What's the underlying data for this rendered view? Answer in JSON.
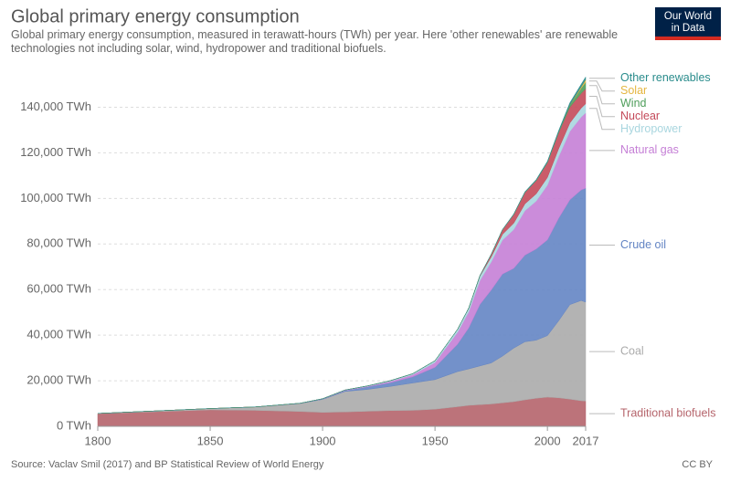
{
  "chart_data": {
    "type": "stacked-area",
    "title": "Global primary energy consumption",
    "subtitle": "Global primary energy consumption, measured in terawatt-hours (TWh) per year. Here 'other renewables' are renewable technologies not including solar, wind, hydropower and traditional biofuels.",
    "source": "Source: Vaclav Smil (2017) and BP Statistical Review of World Energy",
    "license": "CC BY",
    "logo": [
      "Our World",
      "in Data"
    ],
    "x": [
      1800,
      1850,
      1870,
      1890,
      1900,
      1910,
      1920,
      1930,
      1940,
      1950,
      1960,
      1965,
      1970,
      1975,
      1980,
      1985,
      1990,
      1995,
      2000,
      2005,
      2010,
      2015,
      2017
    ],
    "xlim": [
      1800,
      2017
    ],
    "xticks": [
      1800,
      1850,
      1900,
      1950,
      2000,
      2017
    ],
    "ylim": [
      0,
      155000
    ],
    "yticks": [
      {
        "value": 0,
        "label": "0 TWh"
      },
      {
        "value": 20000,
        "label": "20,000 TWh"
      },
      {
        "value": 40000,
        "label": "40,000 TWh"
      },
      {
        "value": 60000,
        "label": "60,000 TWh"
      },
      {
        "value": 80000,
        "label": "80,000 TWh"
      },
      {
        "value": 100000,
        "label": "100,000 TWh"
      },
      {
        "value": 120000,
        "label": "120,000 TWh"
      },
      {
        "value": 140000,
        "label": "140,000 TWh"
      }
    ],
    "grid": true,
    "series": [
      {
        "name": "Traditional biofuels",
        "color": "#b5646b",
        "values": [
          5556,
          7222,
          7000,
          6500,
          6111,
          6300,
          6600,
          6900,
          7000,
          7500,
          8600,
          9200,
          9500,
          9800,
          10300,
          10800,
          11600,
          12300,
          12800,
          12500,
          11900,
          11200,
          11100
        ]
      },
      {
        "name": "Coal",
        "color": "#ababab",
        "values": [
          97,
          570,
          1500,
          3500,
          5700,
          9000,
          9600,
          10600,
          12000,
          13000,
          15400,
          16000,
          17000,
          18000,
          20500,
          23500,
          25500,
          25500,
          27000,
          33800,
          41500,
          44000,
          43400
        ]
      },
      {
        "name": "Crude oil",
        "color": "#6485c4",
        "values": [
          0,
          0,
          6,
          88,
          181,
          380,
          1100,
          1600,
          2700,
          5400,
          12000,
          18000,
          27000,
          32000,
          36000,
          35000,
          38000,
          40000,
          42000,
          45000,
          46000,
          48500,
          50000
        ]
      },
      {
        "name": "Natural gas",
        "color": "#c57fd6",
        "values": [
          0,
          0,
          0,
          33,
          64,
          150,
          230,
          600,
          900,
          2100,
          5200,
          7000,
          10500,
          12300,
          14900,
          17000,
          19500,
          21000,
          24000,
          27000,
          30000,
          32000,
          33000
        ]
      },
      {
        "name": "Hydropower",
        "color": "#a9d6df",
        "values": [
          0,
          0,
          0,
          0,
          50,
          100,
          200,
          300,
          450,
          800,
          1300,
          1600,
          1900,
          2200,
          2500,
          2800,
          3000,
          3200,
          3400,
          3500,
          3700,
          3900,
          4000
        ]
      },
      {
        "name": "Nuclear",
        "color": "#c44a5a",
        "values": [
          0,
          0,
          0,
          0,
          0,
          0,
          0,
          0,
          0,
          0,
          5,
          60,
          230,
          1100,
          2000,
          3800,
          5000,
          5800,
          6500,
          7000,
          7000,
          6500,
          6600
        ]
      },
      {
        "name": "Wind",
        "color": "#4f9e5b",
        "values": [
          0,
          0,
          0,
          0,
          0,
          0,
          0,
          0,
          0,
          0,
          0,
          0,
          0,
          0,
          0,
          5,
          10,
          20,
          80,
          280,
          900,
          2200,
          2800
        ]
      },
      {
        "name": "Solar",
        "color": "#e5b640",
        "values": [
          0,
          0,
          0,
          0,
          0,
          0,
          0,
          0,
          0,
          0,
          0,
          0,
          0,
          0,
          0,
          0,
          1,
          2,
          3,
          10,
          90,
          660,
          1200
        ]
      },
      {
        "name": "Other renewables",
        "color": "#2a8c8c",
        "values": [
          0,
          0,
          0,
          0,
          0,
          0,
          0,
          0,
          0,
          0,
          0,
          50,
          80,
          120,
          160,
          220,
          300,
          400,
          500,
          650,
          900,
          1100,
          1150
        ]
      }
    ]
  }
}
